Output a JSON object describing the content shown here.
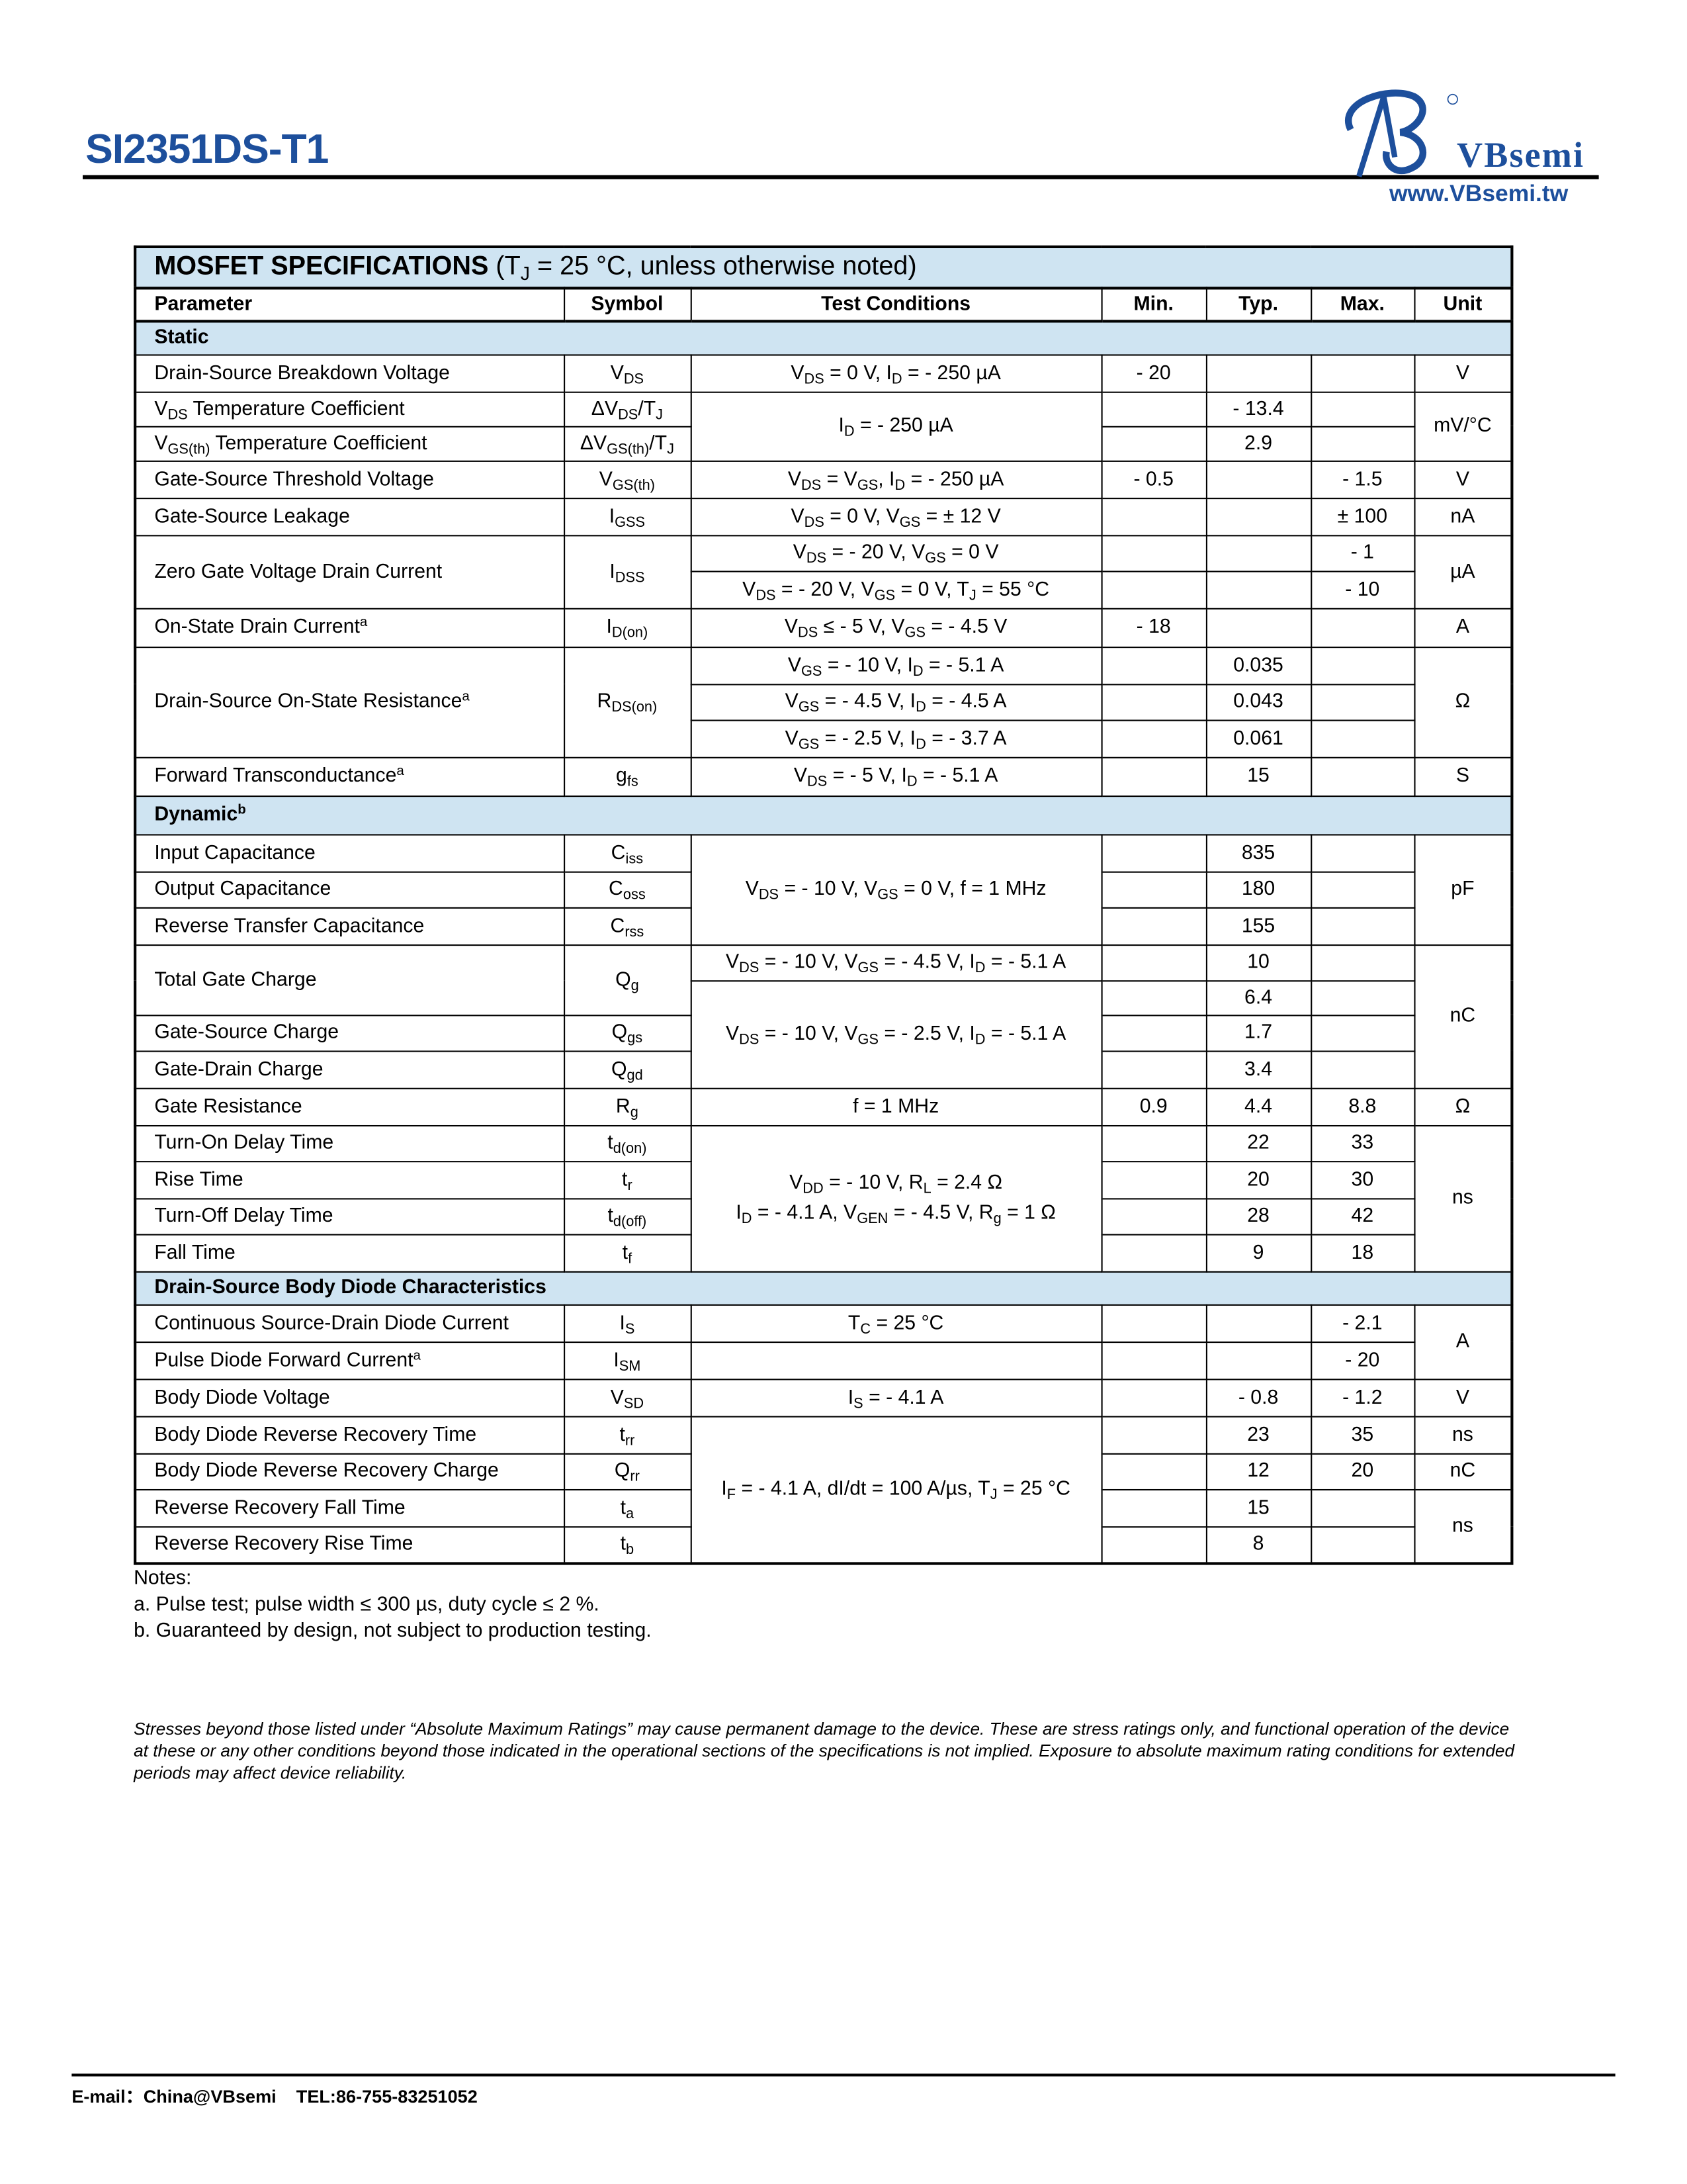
{
  "header": {
    "part_number": "SI2351DS-T1",
    "logo_text": "VBsemi",
    "website": "www.VBsemi.tw",
    "brand_color": "#1d4f9c"
  },
  "table": {
    "title_bold": "MOSFET SPECIFICATIONS",
    "title_rest": "(T_{J} = 25 °C, unless otherwise noted)",
    "columns": [
      "Parameter",
      "Symbol",
      "Test Conditions",
      "Min.",
      "Typ.",
      "Max.",
      "Unit"
    ],
    "static": {
      "label": "Static",
      "rows": [
        {
          "param": "Drain-Source Breakdown Voltage",
          "symbol": "V_{DS}",
          "cond": "V_{DS} = 0 V, I_{D} = - 250 µA",
          "min": "- 20",
          "unit": "V"
        },
        {
          "param": "V_{DS} Temperature Coefficient",
          "symbol": "ΔV_{DS}/T_{J}",
          "cond": "I_{D} = - 250 µA",
          "typ": "- 13.4",
          "unit": "mV/°C"
        },
        {
          "param": "V_{GS(th)} Temperature Coefficient",
          "symbol": "ΔV_{GS(th)}/T_{J}",
          "typ": "2.9"
        },
        {
          "param": "Gate-Source Threshold Voltage",
          "symbol": "V_{GS(th)}",
          "cond": "V_{DS} = V_{GS}, I_{D} = - 250 µA",
          "min": "- 0.5",
          "max": "- 1.5",
          "unit": "V"
        },
        {
          "param": "Gate-Source Leakage",
          "symbol": "I_{GSS}",
          "cond": "V_{DS} = 0 V, V_{GS} = ± 12 V",
          "max": "± 100",
          "unit": "nA"
        },
        {
          "param": "Zero Gate Voltage Drain Current",
          "symbol": "I_{DSS}",
          "cond": [
            "V_{DS} = - 20 V, V_{GS} = 0 V",
            "V_{DS} = - 20 V, V_{GS} = 0 V, T_{J} = 55 °C"
          ],
          "max": [
            "- 1",
            "- 10"
          ],
          "unit": "µA"
        },
        {
          "param": "On-State Drain Current^{a}",
          "symbol": "I_{D(on)}",
          "cond": "V_{DS} ≤ - 5 V, V_{GS} = - 4.5 V",
          "min": "- 18",
          "unit": "A"
        },
        {
          "param": "Drain-Source On-State Resistance^{a}",
          "symbol": "R_{DS(on)}",
          "cond": [
            "V_{GS} = - 10 V, I_{D} = - 5.1 A",
            "V_{GS} = - 4.5 V, I_{D} = - 4.5 A",
            "V_{GS} = - 2.5 V, I_{D} = - 3.7 A"
          ],
          "typ": [
            "0.035",
            "0.043",
            "0.061"
          ],
          "unit": "Ω"
        },
        {
          "param": "Forward Transconductance^{a}",
          "symbol": "g_{fs}",
          "cond": "V_{DS} = - 5 V, I_{D} = - 5.1 A",
          "typ": "15",
          "unit": "S"
        }
      ]
    },
    "dynamic": {
      "label": "Dynamic^{b}",
      "rows": [
        {
          "param": "Input Capacitance",
          "symbol": "C_{iss}",
          "cond": "V_{DS} = - 10 V, V_{GS} = 0 V, f = 1 MHz",
          "typ": "835",
          "unit": "pF"
        },
        {
          "param": "Output Capacitance",
          "symbol": "C_{oss}",
          "typ": "180"
        },
        {
          "param": "Reverse Transfer Capacitance",
          "symbol": "C_{rss}",
          "typ": "155"
        },
        {
          "param": "Total Gate Charge",
          "symbol": "Q_{g}",
          "cond": "V_{DS} = - 10 V, V_{GS} = - 4.5 V, I_{D} = - 5.1 A",
          "typ": [
            "10",
            "6.4"
          ],
          "unit": "nC"
        },
        {
          "param": "Gate-Source Charge",
          "symbol": "Q_{gs}",
          "cond": "V_{DS} = - 10 V, V_{GS} = - 2.5 V, I_{D} = - 5.1 A",
          "typ": "1.7"
        },
        {
          "param": "Gate-Drain Charge",
          "symbol": "Q_{gd}",
          "typ": "3.4"
        },
        {
          "param": "Gate Resistance",
          "symbol": "R_{g}",
          "cond": "f = 1 MHz",
          "min": "0.9",
          "typ": "4.4",
          "max": "8.8",
          "unit": "Ω"
        },
        {
          "param": "Turn-On Delay Time",
          "symbol": "t_{d(on)}",
          "cond": [
            "V_{DD} = - 10 V, R_{L} = 2.4 Ω",
            "I_{D} = - 4.1 A, V_{GEN} = - 4.5 V, R_{g} = 1 Ω"
          ],
          "typ": "22",
          "max": "33",
          "unit": "ns"
        },
        {
          "param": "Rise Time",
          "symbol": "t_{r}",
          "typ": "20",
          "max": "30"
        },
        {
          "param": "Turn-Off Delay Time",
          "symbol": "t_{d(off)}",
          "typ": "28",
          "max": "42"
        },
        {
          "param": "Fall Time",
          "symbol": "t_{f}",
          "typ": "9",
          "max": "18"
        }
      ]
    },
    "diode": {
      "label": "Drain-Source Body Diode Characteristics",
      "rows": [
        {
          "param": "Continuous Source-Drain Diode Current",
          "symbol": "I_{S}",
          "cond": "T_{C} = 25 °C",
          "max": "- 2.1",
          "unit": "A"
        },
        {
          "param": "Pulse Diode Forward Current^{a}",
          "symbol": "I_{SM}",
          "max": "- 20"
        },
        {
          "param": "Body Diode Voltage",
          "symbol": "V_{SD}",
          "cond": "I_{S} = - 4.1 A",
          "typ": "- 0.8",
          "max": "- 1.2",
          "unit": "V"
        },
        {
          "param": "Body Diode Reverse Recovery Time",
          "symbol": "t_{rr}",
          "cond": "I_{F} = - 4.1 A, dI/dt = 100 A/µs, T_{J} = 25 °C",
          "typ": "23",
          "max": "35",
          "unit": "ns"
        },
        {
          "param": "Body Diode Reverse Recovery Charge",
          "symbol": "Q_{rr}",
          "typ": "12",
          "max": "20",
          "unit": "nC"
        },
        {
          "param": "Reverse Recovery Fall Time",
          "symbol": "t_{a}",
          "typ": "15",
          "unit": "ns"
        },
        {
          "param": "Reverse Recovery Rise Time",
          "symbol": "t_{b}",
          "typ": "8"
        }
      ]
    }
  },
  "notes": {
    "heading": "Notes:",
    "items": [
      "a. Pulse test; pulse width ≤ 300 µs, duty cycle ≤ 2 %.",
      "b. Guaranteed by design, not subject to production testing."
    ]
  },
  "disclaimer": "Stresses beyond those listed under “Absolute Maximum Ratings” may cause permanent damage to the device. These are stress ratings only, and functional operation of the device at these or any other conditions beyond those indicated in the operational sections of the specifications is not implied. Exposure to absolute maximum rating conditions for extended periods may affect device reliability.",
  "footer": {
    "contact": "E-mail：China@VBsemi    TEL:86-755-83251052"
  }
}
